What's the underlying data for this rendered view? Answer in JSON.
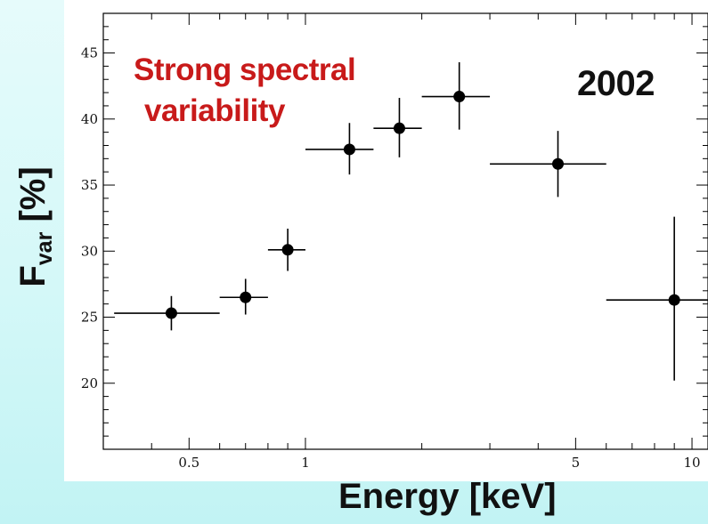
{
  "chart_data": {
    "type": "scatter",
    "title": "",
    "xlabel": "Energy [keV]",
    "ylabel": "F",
    "ylabel_sub": "var",
    "x_scale": "log",
    "xlim": [
      0.3,
      11
    ],
    "ylim": [
      15,
      48
    ],
    "grid": false,
    "x_ticks": [
      0.5,
      1,
      5,
      10
    ],
    "x_tick_labels": [
      "0.5",
      "1",
      "5",
      "10"
    ],
    "y_ticks": [
      20,
      25,
      30,
      35,
      40,
      45
    ],
    "y_tick_labels": [
      "20",
      "25",
      "30",
      "35",
      "40",
      "45"
    ],
    "annotation": [
      "Strong spectral",
      "variability"
    ],
    "year": "2002",
    "points": [
      {
        "x": 0.45,
        "xerr_low": 0.32,
        "xerr_high": 0.6,
        "y": 25.3,
        "yerr_low": 24.0,
        "yerr_high": 26.6
      },
      {
        "x": 0.7,
        "xerr_low": 0.6,
        "xerr_high": 0.8,
        "y": 26.5,
        "yerr_low": 25.2,
        "yerr_high": 27.9
      },
      {
        "x": 0.9,
        "xerr_low": 0.8,
        "xerr_high": 1.0,
        "y": 30.1,
        "yerr_low": 28.5,
        "yerr_high": 31.7
      },
      {
        "x": 1.3,
        "xerr_low": 1.0,
        "xerr_high": 1.5,
        "y": 37.7,
        "yerr_low": 35.8,
        "yerr_high": 39.7
      },
      {
        "x": 1.75,
        "xerr_low": 1.5,
        "xerr_high": 2.0,
        "y": 39.3,
        "yerr_low": 37.1,
        "yerr_high": 41.6
      },
      {
        "x": 2.5,
        "xerr_low": 2.0,
        "xerr_high": 3.0,
        "y": 41.7,
        "yerr_low": 39.2,
        "yerr_high": 44.3
      },
      {
        "x": 4.5,
        "xerr_low": 3.0,
        "xerr_high": 6.0,
        "y": 36.6,
        "yerr_low": 34.1,
        "yerr_high": 39.1
      },
      {
        "x": 9.0,
        "xerr_low": 6.0,
        "xerr_high": 12.0,
        "y": 26.3,
        "yerr_low": 20.2,
        "yerr_high": 32.6
      }
    ]
  },
  "colors": {
    "annotation": "#c81a1a",
    "marker": "#000000",
    "background_top": "#e6fbfb",
    "background_bottom": "#c2f3f4"
  }
}
